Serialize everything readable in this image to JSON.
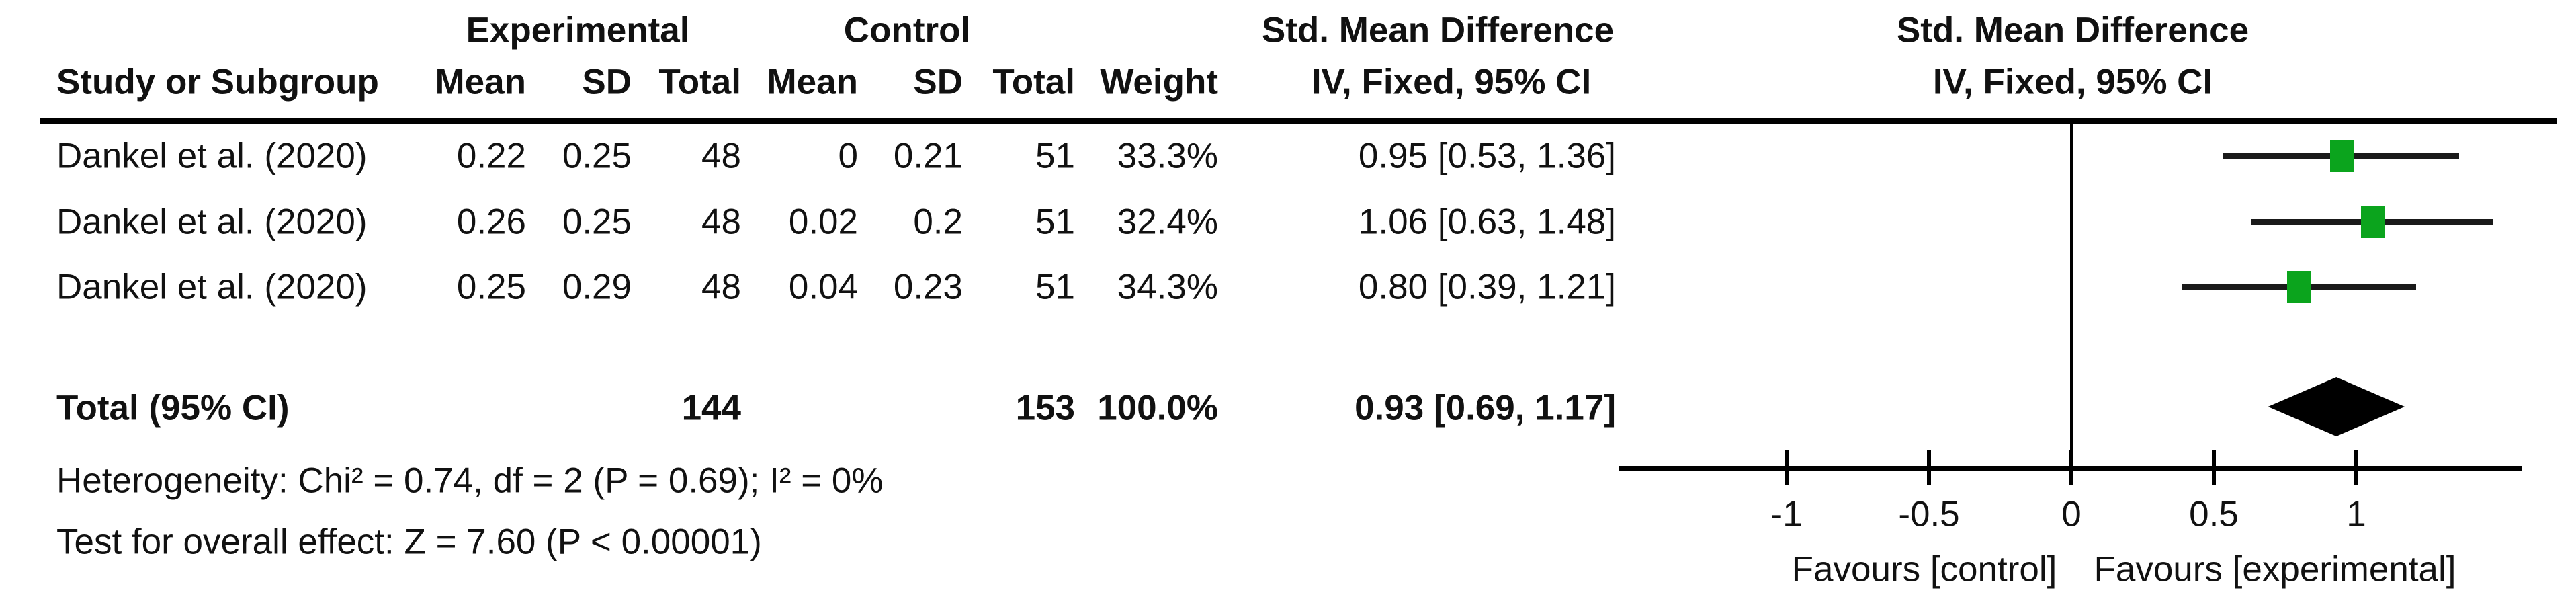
{
  "header": {
    "group1": "Experimental",
    "group2": "Control",
    "effect_col_line1": "Std. Mean Difference",
    "effect_col_line2": "IV, Fixed, 95% CI",
    "plot_col_line1": "Std. Mean Difference",
    "plot_col_line2": "IV, Fixed, 95% CI",
    "study_col": "Study or Subgroup",
    "sub_columns": [
      "Mean",
      "SD",
      "Total",
      "Mean",
      "SD",
      "Total",
      "Weight"
    ]
  },
  "rows": [
    {
      "study": "Dankel et al. (2020)",
      "exp_mean": "0.22",
      "exp_sd": "0.25",
      "exp_total": "48",
      "ctrl_mean": "0",
      "ctrl_sd": "0.21",
      "ctrl_total": "51",
      "weight": "33.3%",
      "estimate": "0.95 [0.53, 1.36]"
    },
    {
      "study": "Dankel et al. (2020)",
      "exp_mean": "0.26",
      "exp_sd": "0.25",
      "exp_total": "48",
      "ctrl_mean": "0.02",
      "ctrl_sd": "0.2",
      "ctrl_total": "51",
      "weight": "32.4%",
      "estimate": "1.06 [0.63, 1.48]"
    },
    {
      "study": "Dankel et al. (2020)",
      "exp_mean": "0.25",
      "exp_sd": "0.29",
      "exp_total": "48",
      "ctrl_mean": "0.04",
      "ctrl_sd": "0.23",
      "ctrl_total": "51",
      "weight": "34.3%",
      "estimate": "0.80 [0.39, 1.21]"
    }
  ],
  "total_row": {
    "label": "Total (95% CI)",
    "exp_total": "144",
    "ctrl_total": "153",
    "weight": "100.0%",
    "estimate": "0.93 [0.69, 1.17]"
  },
  "footnotes": {
    "heterogeneity": "Heterogeneity: Chi² = 0.74, df = 2 (P = 0.69); I² = 0%",
    "overall_effect": "Test for overall effect: Z = 7.60 (P < 0.00001)"
  },
  "chart_data": {
    "type": "forest",
    "title": "Std. Mean Difference, IV, Fixed, 95% CI",
    "effect_measure": "Std. Mean Difference",
    "model": "IV, Fixed, 95% CI",
    "x_axis": {
      "ticks": [
        -1,
        -0.5,
        0,
        0.5,
        1
      ],
      "tick_labels": [
        "-1",
        "-0.5",
        "0",
        "0.5",
        "1"
      ],
      "range": [
        -1.59,
        1.58
      ],
      "zero_line": 0
    },
    "x_axis_labels": {
      "left": "Favours [control]",
      "right": "Favours [experimental]"
    },
    "studies": [
      {
        "label": "Dankel et al. (2020)",
        "smd": 0.95,
        "ci": [
          0.53,
          1.36
        ],
        "weight_pct": 33.3
      },
      {
        "label": "Dankel et al. (2020)",
        "smd": 1.06,
        "ci": [
          0.63,
          1.48
        ],
        "weight_pct": 32.4
      },
      {
        "label": "Dankel et al. (2020)",
        "smd": 0.8,
        "ci": [
          0.39,
          1.21
        ],
        "weight_pct": 34.3
      }
    ],
    "total": {
      "label": "Total (95% CI)",
      "smd": 0.93,
      "ci": [
        0.69,
        1.17
      ],
      "weight_pct": 100.0
    },
    "heterogeneity": {
      "chi2": 0.74,
      "df": 2,
      "p": 0.69,
      "i2_pct": 0
    },
    "overall_effect": {
      "z": 7.6,
      "p": "< 0.00001"
    },
    "marker_color": "#0ba41d",
    "ci_line_color": "#1a1a1a",
    "diamond_color": "#000000",
    "legend_position": "none",
    "grid": false
  }
}
